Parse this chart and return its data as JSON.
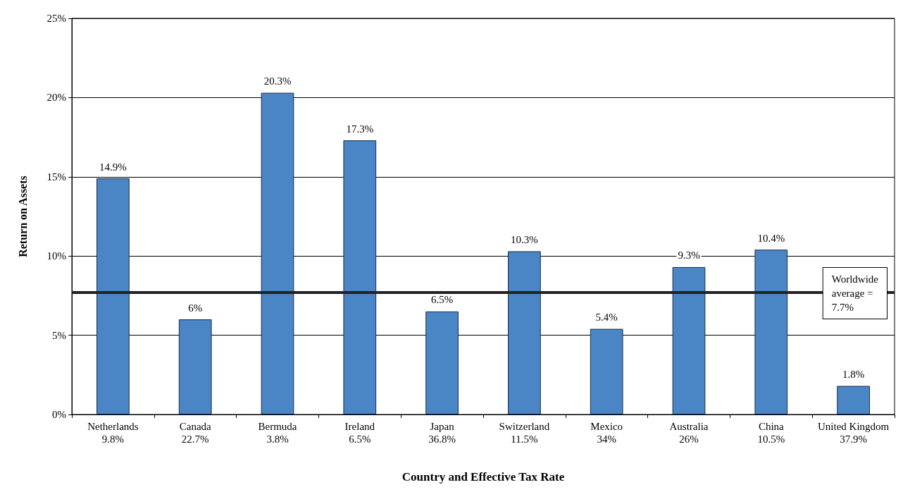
{
  "chart_data": {
    "type": "bar",
    "xlabel": "Country and Effective Tax Rate",
    "ylabel": "Return on Assets",
    "categories": [
      "Netherlands\n9.8%",
      "Canada\n22.7%",
      "Bermuda\n3.8%",
      "Ireland\n6.5%",
      "Japan\n36.8%",
      "Switzerland\n11.5%",
      "Mexico\n34%",
      "Australia\n26%",
      "China\n10.5%",
      "United Kingdom\n37.9%"
    ],
    "values": [
      14.9,
      6,
      20.3,
      17.3,
      6.5,
      10.3,
      5.4,
      9.3,
      10.4,
      1.8
    ],
    "value_labels": [
      "14.9%",
      "6%",
      "20.3%",
      "17.3%",
      "6.5%",
      "10.3%",
      "5.4%",
      "9.3%",
      "10.4%",
      "1.8%"
    ],
    "color": "#4a86c6",
    "ylim": [
      0,
      25
    ],
    "yticks": [
      {
        "value": 0,
        "label": "0%"
      },
      {
        "value": 5,
        "label": "5%"
      },
      {
        "value": 10,
        "label": "10%"
      },
      {
        "value": 15,
        "label": "15%"
      },
      {
        "value": 20,
        "label": "20%"
      },
      {
        "value": 25,
        "label": "25%"
      }
    ],
    "grid": "y",
    "ref_lines": [
      {
        "axis": "y",
        "value": 7.7,
        "label": "Worldwide average = 7.7%",
        "color": "#222222",
        "line_style": "solid"
      }
    ]
  }
}
